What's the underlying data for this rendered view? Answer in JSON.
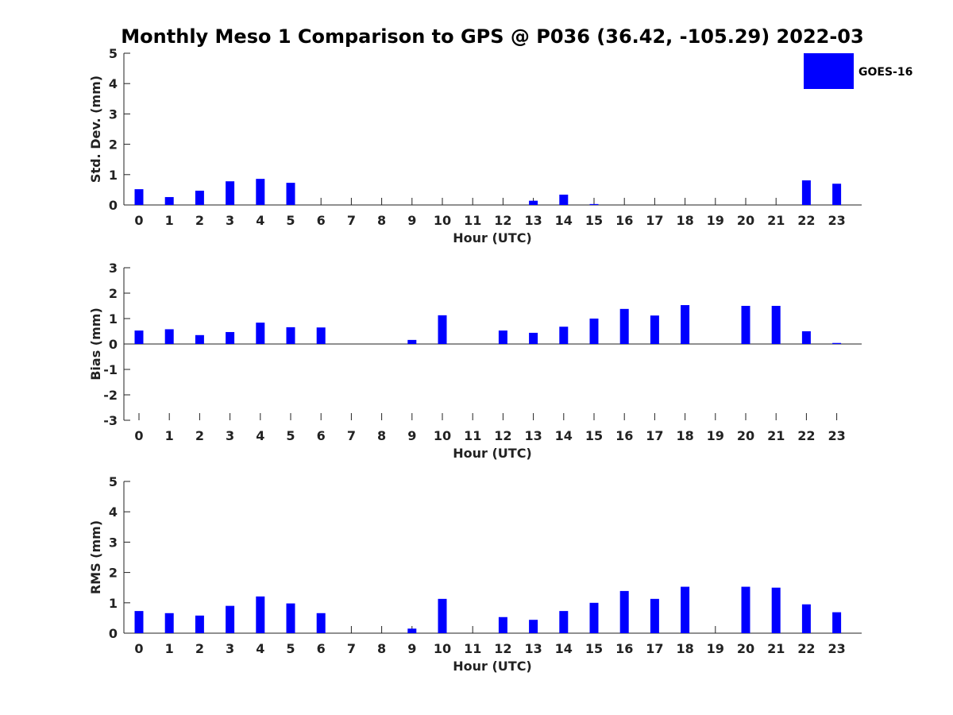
{
  "title": "Monthly Meso 1 Comparison to GPS @ P036 (36.42, -105.29) 2022-03",
  "legend": {
    "label": "GOES-16",
    "color": "#0000ff",
    "placement": "top-right"
  },
  "chart_data": [
    {
      "type": "bar",
      "xlabel": "Hour (UTC)",
      "ylabel": "Std. Dev. (mm)",
      "ylim": [
        0,
        5
      ],
      "yticks": [
        0,
        1,
        2,
        3,
        4,
        5
      ],
      "categories": [
        "0",
        "1",
        "2",
        "3",
        "4",
        "5",
        "6",
        "7",
        "8",
        "9",
        "10",
        "11",
        "12",
        "13",
        "14",
        "15",
        "16",
        "17",
        "18",
        "19",
        "20",
        "21",
        "22",
        "23"
      ],
      "series": [
        {
          "name": "GOES-16",
          "color": "#0000ff",
          "values": [
            0.52,
            0.26,
            0.47,
            0.78,
            0.86,
            0.73,
            null,
            null,
            null,
            null,
            null,
            null,
            null,
            0.14,
            0.34,
            0.03,
            null,
            null,
            null,
            null,
            null,
            null,
            0.81,
            0.7
          ]
        }
      ]
    },
    {
      "type": "bar",
      "xlabel": "Hour (UTC)",
      "ylabel": "Bias (mm)",
      "ylim": [
        -3,
        3
      ],
      "yticks": [
        -3,
        -2,
        -1,
        0,
        1,
        2,
        3
      ],
      "categories": [
        "0",
        "1",
        "2",
        "3",
        "4",
        "5",
        "6",
        "7",
        "8",
        "9",
        "10",
        "11",
        "12",
        "13",
        "14",
        "15",
        "16",
        "17",
        "18",
        "19",
        "20",
        "21",
        "22",
        "23"
      ],
      "series": [
        {
          "name": "GOES-16",
          "color": "#0000ff",
          "values": [
            0.53,
            0.58,
            0.35,
            0.47,
            0.84,
            0.66,
            0.65,
            null,
            null,
            0.16,
            1.13,
            null,
            0.53,
            0.44,
            0.68,
            1.0,
            1.38,
            1.12,
            1.53,
            null,
            1.5,
            1.5,
            0.5,
            0.04
          ]
        }
      ]
    },
    {
      "type": "bar",
      "xlabel": "Hour (UTC)",
      "ylabel": "RMS (mm)",
      "ylim": [
        0,
        5
      ],
      "yticks": [
        0,
        1,
        2,
        3,
        4,
        5
      ],
      "categories": [
        "0",
        "1",
        "2",
        "3",
        "4",
        "5",
        "6",
        "7",
        "8",
        "9",
        "10",
        "11",
        "12",
        "13",
        "14",
        "15",
        "16",
        "17",
        "18",
        "19",
        "20",
        "21",
        "22",
        "23"
      ],
      "series": [
        {
          "name": "GOES-16",
          "color": "#0000ff",
          "values": [
            0.73,
            0.66,
            0.58,
            0.9,
            1.21,
            0.98,
            0.66,
            null,
            null,
            0.15,
            1.13,
            null,
            0.53,
            0.44,
            0.73,
            1.0,
            1.39,
            1.13,
            1.53,
            null,
            1.53,
            1.5,
            0.95,
            0.69
          ]
        }
      ]
    }
  ]
}
